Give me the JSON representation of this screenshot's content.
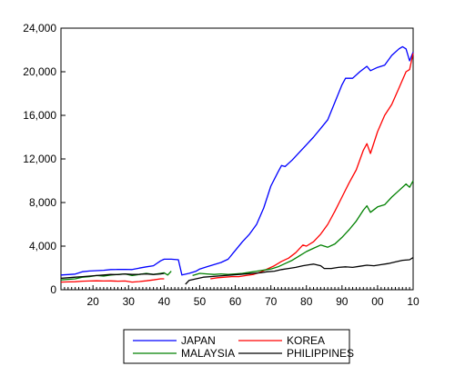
{
  "chart_data": {
    "type": "line",
    "title": "",
    "xlabel": "",
    "ylabel": "",
    "xlim": [
      1911,
      2010
    ],
    "ylim": [
      0,
      24000
    ],
    "x_tick_labels": [
      "20",
      "30",
      "40",
      "50",
      "60",
      "70",
      "80",
      "90",
      "00",
      "10"
    ],
    "x_tick_values": [
      1920,
      1930,
      1940,
      1950,
      1960,
      1970,
      1980,
      1990,
      2000,
      2010
    ],
    "y_tick_labels": [
      "0",
      "4,000",
      "8,000",
      "12,000",
      "16,000",
      "20,000",
      "24,000"
    ],
    "y_tick_values": [
      0,
      4000,
      8000,
      12000,
      16000,
      20000,
      24000
    ],
    "grid": false,
    "legend_position": "bottom",
    "series": [
      {
        "name": "JAPAN",
        "color": "#0000ff",
        "points": [
          [
            1911,
            1350
          ],
          [
            1913,
            1390
          ],
          [
            1915,
            1430
          ],
          [
            1917,
            1650
          ],
          [
            1919,
            1720
          ],
          [
            1921,
            1750
          ],
          [
            1923,
            1780
          ],
          [
            1925,
            1850
          ],
          [
            1927,
            1860
          ],
          [
            1929,
            1870
          ],
          [
            1931,
            1850
          ],
          [
            1933,
            1980
          ],
          [
            1935,
            2100
          ],
          [
            1937,
            2200
          ],
          [
            1939,
            2650
          ],
          [
            1940,
            2800
          ],
          [
            1942,
            2800
          ],
          [
            1944,
            2750
          ],
          [
            1945,
            1350
          ],
          [
            1947,
            1500
          ],
          [
            1949,
            1700
          ],
          [
            1950,
            1900
          ],
          [
            1952,
            2100
          ],
          [
            1954,
            2300
          ],
          [
            1956,
            2500
          ],
          [
            1958,
            2800
          ],
          [
            1960,
            3600
          ],
          [
            1962,
            4400
          ],
          [
            1964,
            5100
          ],
          [
            1966,
            6000
          ],
          [
            1968,
            7500
          ],
          [
            1970,
            9500
          ],
          [
            1972,
            10800
          ],
          [
            1973,
            11400
          ],
          [
            1974,
            11300
          ],
          [
            1976,
            11900
          ],
          [
            1978,
            12600
          ],
          [
            1980,
            13300
          ],
          [
            1982,
            14000
          ],
          [
            1984,
            14800
          ],
          [
            1986,
            15600
          ],
          [
            1988,
            17200
          ],
          [
            1990,
            18800
          ],
          [
            1991,
            19400
          ],
          [
            1993,
            19400
          ],
          [
            1995,
            20000
          ],
          [
            1997,
            20500
          ],
          [
            1998,
            20100
          ],
          [
            2000,
            20400
          ],
          [
            2002,
            20600
          ],
          [
            2004,
            21500
          ],
          [
            2006,
            22100
          ],
          [
            2007,
            22300
          ],
          [
            2008,
            22100
          ],
          [
            2009,
            21000
          ],
          [
            2010,
            21800
          ]
        ]
      },
      {
        "name": "KOREA",
        "color": "#ff0000",
        "points": [
          [
            1911,
            700
          ],
          [
            1913,
            720
          ],
          [
            1915,
            730
          ],
          [
            1917,
            780
          ],
          [
            1919,
            800
          ],
          [
            1921,
            820
          ],
          [
            1923,
            800
          ],
          [
            1925,
            810
          ],
          [
            1927,
            780
          ],
          [
            1929,
            800
          ],
          [
            1931,
            700
          ],
          [
            1933,
            750
          ],
          [
            1935,
            820
          ],
          [
            1937,
            900
          ],
          [
            1939,
            1000
          ],
          [
            1940,
            1000
          ],
          [
            1953,
            1000
          ],
          [
            1955,
            1100
          ],
          [
            1957,
            1150
          ],
          [
            1959,
            1200
          ],
          [
            1961,
            1200
          ],
          [
            1963,
            1300
          ],
          [
            1965,
            1400
          ],
          [
            1967,
            1600
          ],
          [
            1969,
            1900
          ],
          [
            1971,
            2200
          ],
          [
            1973,
            2600
          ],
          [
            1975,
            2900
          ],
          [
            1977,
            3400
          ],
          [
            1979,
            4100
          ],
          [
            1980,
            4000
          ],
          [
            1982,
            4400
          ],
          [
            1984,
            5100
          ],
          [
            1986,
            6000
          ],
          [
            1988,
            7200
          ],
          [
            1990,
            8500
          ],
          [
            1992,
            9800
          ],
          [
            1994,
            11000
          ],
          [
            1996,
            12800
          ],
          [
            1997,
            13400
          ],
          [
            1998,
            12500
          ],
          [
            2000,
            14500
          ],
          [
            2002,
            16000
          ],
          [
            2004,
            17000
          ],
          [
            2006,
            18500
          ],
          [
            2008,
            20000
          ],
          [
            2009,
            20200
          ],
          [
            2010,
            21700
          ]
        ]
      },
      {
        "name": "MALAYSIA",
        "color": "#008000",
        "points": [
          [
            1911,
            900
          ],
          [
            1913,
            950
          ],
          [
            1915,
            1000
          ],
          [
            1917,
            1150
          ],
          [
            1919,
            1200
          ],
          [
            1921,
            1300
          ],
          [
            1923,
            1250
          ],
          [
            1925,
            1350
          ],
          [
            1927,
            1400
          ],
          [
            1929,
            1450
          ],
          [
            1931,
            1300
          ],
          [
            1933,
            1400
          ],
          [
            1935,
            1500
          ],
          [
            1937,
            1400
          ],
          [
            1939,
            1500
          ],
          [
            1940,
            1550
          ],
          [
            1941,
            1350
          ],
          [
            1942,
            1700
          ],
          [
            1948,
            1300
          ],
          [
            1950,
            1500
          ],
          [
            1952,
            1450
          ],
          [
            1954,
            1400
          ],
          [
            1956,
            1450
          ],
          [
            1958,
            1400
          ],
          [
            1960,
            1450
          ],
          [
            1962,
            1500
          ],
          [
            1964,
            1600
          ],
          [
            1966,
            1700
          ],
          [
            1968,
            1800
          ],
          [
            1970,
            1900
          ],
          [
            1972,
            2100
          ],
          [
            1974,
            2400
          ],
          [
            1976,
            2700
          ],
          [
            1978,
            3100
          ],
          [
            1980,
            3500
          ],
          [
            1982,
            3800
          ],
          [
            1984,
            4100
          ],
          [
            1985,
            4000
          ],
          [
            1986,
            3900
          ],
          [
            1988,
            4200
          ],
          [
            1990,
            4800
          ],
          [
            1992,
            5500
          ],
          [
            1994,
            6300
          ],
          [
            1996,
            7300
          ],
          [
            1997,
            7700
          ],
          [
            1998,
            7100
          ],
          [
            2000,
            7600
          ],
          [
            2002,
            7800
          ],
          [
            2004,
            8500
          ],
          [
            2006,
            9100
          ],
          [
            2008,
            9700
          ],
          [
            2009,
            9400
          ],
          [
            2010,
            10000
          ]
        ]
      },
      {
        "name": "PHILIPPINES",
        "color": "#000000",
        "points": [
          [
            1911,
            1050
          ],
          [
            1913,
            1100
          ],
          [
            1915,
            1150
          ],
          [
            1917,
            1200
          ],
          [
            1919,
            1250
          ],
          [
            1921,
            1300
          ],
          [
            1923,
            1350
          ],
          [
            1925,
            1400
          ],
          [
            1927,
            1380
          ],
          [
            1929,
            1450
          ],
          [
            1931,
            1400
          ],
          [
            1933,
            1420
          ],
          [
            1935,
            1450
          ],
          [
            1937,
            1400
          ],
          [
            1939,
            1450
          ],
          [
            1940,
            1500
          ],
          [
            1946,
            500
          ],
          [
            1947,
            850
          ],
          [
            1949,
            1000
          ],
          [
            1951,
            1150
          ],
          [
            1953,
            1200
          ],
          [
            1955,
            1250
          ],
          [
            1957,
            1300
          ],
          [
            1959,
            1350
          ],
          [
            1961,
            1400
          ],
          [
            1963,
            1450
          ],
          [
            1965,
            1500
          ],
          [
            1967,
            1550
          ],
          [
            1969,
            1650
          ],
          [
            1971,
            1700
          ],
          [
            1973,
            1850
          ],
          [
            1975,
            1950
          ],
          [
            1977,
            2050
          ],
          [
            1979,
            2200
          ],
          [
            1981,
            2300
          ],
          [
            1982,
            2350
          ],
          [
            1984,
            2200
          ],
          [
            1985,
            1950
          ],
          [
            1987,
            1950
          ],
          [
            1989,
            2050
          ],
          [
            1991,
            2100
          ],
          [
            1993,
            2050
          ],
          [
            1995,
            2150
          ],
          [
            1997,
            2250
          ],
          [
            1999,
            2200
          ],
          [
            2001,
            2300
          ],
          [
            2003,
            2400
          ],
          [
            2005,
            2550
          ],
          [
            2007,
            2700
          ],
          [
            2009,
            2750
          ],
          [
            2010,
            2950
          ]
        ]
      }
    ]
  }
}
